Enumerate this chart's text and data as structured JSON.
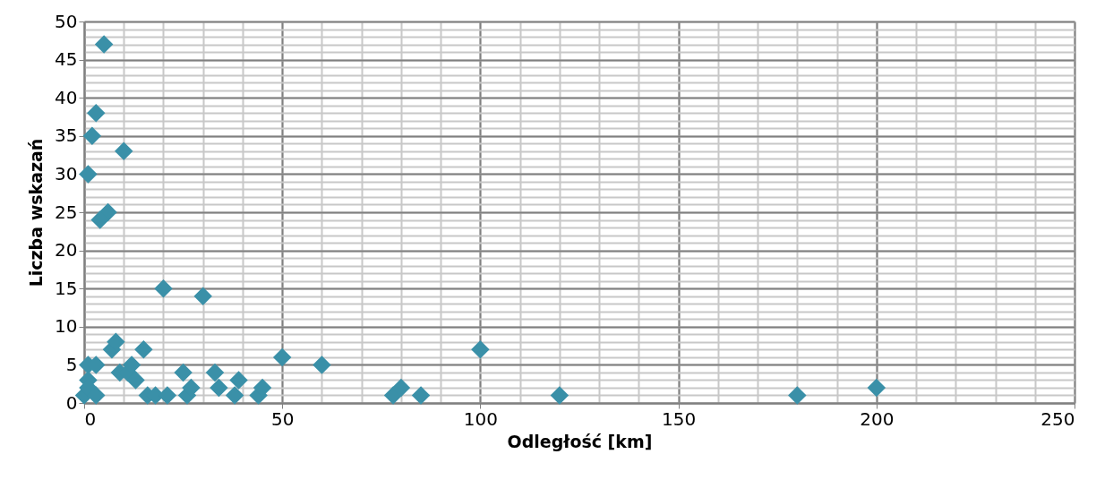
{
  "chart_data": {
    "type": "scatter",
    "xlabel": "Odległość  [km]",
    "ylabel": "Liczba wskazań",
    "x": [
      5,
      3,
      2,
      10,
      1,
      6,
      4,
      20,
      30,
      0,
      1,
      3,
      1,
      1,
      3,
      7,
      8,
      9,
      11,
      12,
      13,
      15,
      16,
      18,
      21,
      25,
      26,
      27,
      33,
      34,
      38,
      39,
      44,
      45,
      50,
      60,
      78,
      80,
      85,
      100,
      120,
      180,
      200
    ],
    "series": [
      {
        "color": "#3a90a8",
        "values": [
          47,
          38,
          35,
          33,
          30,
          25,
          24,
          15,
          14,
          1,
          5,
          5,
          3,
          2,
          1,
          7,
          8,
          4,
          4,
          5,
          3,
          7,
          1,
          1,
          1,
          4,
          1,
          2,
          4,
          2,
          1,
          3,
          1,
          2,
          6,
          5,
          1,
          2,
          1,
          7,
          1,
          1,
          2
        ]
      }
    ],
    "xlim": [
      0,
      250
    ],
    "xticks": [
      0,
      50,
      100,
      150,
      200,
      250
    ],
    "ylim": [
      0,
      50
    ],
    "yticks": [
      0,
      5,
      10,
      15,
      20,
      25,
      30,
      35,
      40,
      45,
      50
    ],
    "grid": true,
    "marker": "diamond"
  }
}
